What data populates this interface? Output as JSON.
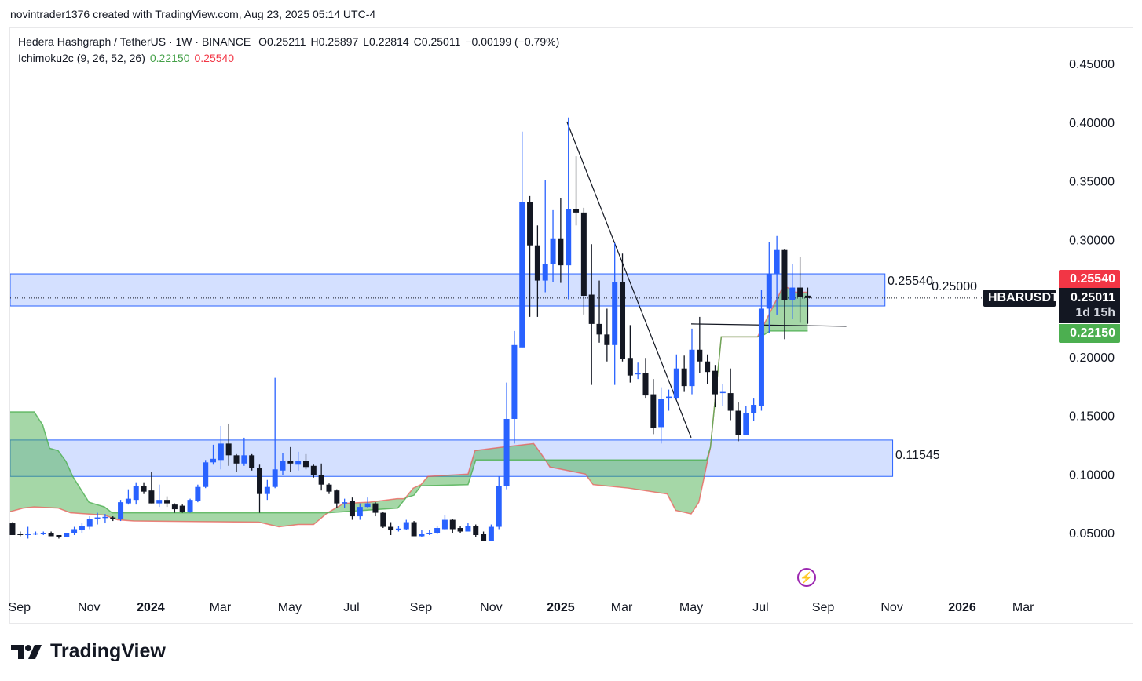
{
  "credit": "novintrader1376 created with TradingView.com, Aug 23, 2025 05:14 UTC-4",
  "legend": {
    "symbol": "Hedera Hashgraph / TetherUS · 1W · BINANCE",
    "open": "O0.25211",
    "high": "H0.25897",
    "low": "L0.22814",
    "close": "C0.25011",
    "change": "−0.00199 (−0.79%)",
    "indicator": "Ichimoku2c (9, 26, 52, 26)",
    "ind_val1": "0.22150",
    "ind_val2": "0.25540"
  },
  "price_tags": {
    "symbol": "HBARUSDT",
    "last": "0.25011",
    "countdown": "1d 15h",
    "span_b": "0.25540",
    "span_a": "0.22150"
  },
  "box_labels": {
    "upper": "0.25540",
    "lower": "0.11545"
  },
  "logo_text": "TradingView",
  "icons": {
    "event": "lightning-icon"
  },
  "colors": {
    "up": "#2962ff",
    "down": "#131722",
    "box": "#2962ff",
    "cloud": "#4caf50",
    "span_b": "#ef5350",
    "tag_red": "#f23645",
    "tag_green": "#4caf50"
  },
  "chart_data": {
    "type": "candlestick",
    "title": "Hedera Hashgraph / TetherUS · 1W · BINANCE",
    "xlabel": "",
    "ylabel": "",
    "interval": "1W",
    "ylim": [
      -0.024,
      0.481
    ],
    "xlim_weeks": [
      -0.3,
      145.3
    ],
    "y_ticks": [
      "0.45000",
      "0.40000",
      "0.35000",
      "0.30000",
      "0.25000",
      "0.20000",
      "0.15000",
      "0.10000",
      "0.05000"
    ],
    "x_ticks": [
      {
        "label": "Sep",
        "week": 0.9
      },
      {
        "label": "Nov",
        "week": 9.9
      },
      {
        "label": "2024",
        "week": 17.9,
        "bold": true
      },
      {
        "label": "Mar",
        "week": 26.9
      },
      {
        "label": "May",
        "week": 35.9
      },
      {
        "label": "Jul",
        "week": 43.9
      },
      {
        "label": "Sep",
        "week": 52.9
      },
      {
        "label": "Nov",
        "week": 62
      },
      {
        "label": "2025",
        "week": 71,
        "bold": true
      },
      {
        "label": "Mar",
        "week": 78.9
      },
      {
        "label": "May",
        "week": 87.9
      },
      {
        "label": "Jul",
        "week": 96.9
      },
      {
        "label": "Sep",
        "week": 105
      },
      {
        "label": "Nov",
        "week": 113.9
      },
      {
        "label": "2026",
        "week": 123,
        "bold": true
      },
      {
        "label": "Mar",
        "week": 130.9
      }
    ],
    "ohlc_fields": [
      "open",
      "high",
      "low",
      "close"
    ],
    "candles": [
      [
        0.058,
        0.059,
        0.048,
        0.048
      ],
      [
        0.049,
        0.051,
        0.047,
        0.048
      ],
      [
        0.048,
        0.055,
        0.045,
        0.049
      ],
      [
        0.049,
        0.051,
        0.048,
        0.0495
      ],
      [
        0.049,
        0.051,
        0.048,
        0.05
      ],
      [
        0.05,
        0.051,
        0.047,
        0.047
      ],
      [
        0.048,
        0.048,
        0.045,
        0.046
      ],
      [
        0.046,
        0.05,
        0.046,
        0.05
      ],
      [
        0.05,
        0.055,
        0.048,
        0.053
      ],
      [
        0.052,
        0.058,
        0.05,
        0.056
      ],
      [
        0.055,
        0.064,
        0.053,
        0.062
      ],
      [
        0.062,
        0.067,
        0.057,
        0.063
      ],
      [
        0.063,
        0.066,
        0.058,
        0.0635
      ],
      [
        0.063,
        0.064,
        0.06,
        0.062
      ],
      [
        0.062,
        0.078,
        0.06,
        0.076
      ],
      [
        0.075,
        0.087,
        0.074,
        0.079
      ],
      [
        0.078,
        0.093,
        0.074,
        0.09
      ],
      [
        0.09,
        0.093,
        0.083,
        0.085
      ],
      [
        0.086,
        0.102,
        0.075,
        0.075
      ],
      [
        0.075,
        0.091,
        0.072,
        0.078
      ],
      [
        0.078,
        0.081,
        0.072,
        0.075
      ],
      [
        0.074,
        0.075,
        0.067,
        0.07
      ],
      [
        0.073,
        0.074,
        0.067,
        0.068
      ],
      [
        0.068,
        0.079,
        0.067,
        0.078
      ],
      [
        0.077,
        0.091,
        0.076,
        0.089
      ],
      [
        0.089,
        0.112,
        0.088,
        0.11
      ],
      [
        0.11,
        0.125,
        0.108,
        0.113
      ],
      [
        0.112,
        0.141,
        0.104,
        0.126
      ],
      [
        0.126,
        0.143,
        0.107,
        0.116
      ],
      [
        0.116,
        0.117,
        0.102,
        0.109
      ],
      [
        0.109,
        0.131,
        0.107,
        0.116
      ],
      [
        0.116,
        0.117,
        0.103,
        0.105
      ],
      [
        0.105,
        0.108,
        0.067,
        0.083
      ],
      [
        0.083,
        0.095,
        0.078,
        0.089
      ],
      [
        0.089,
        0.182,
        0.088,
        0.104
      ],
      [
        0.103,
        0.118,
        0.099,
        0.111
      ],
      [
        0.111,
        0.123,
        0.102,
        0.109
      ],
      [
        0.108,
        0.119,
        0.103,
        0.111
      ],
      [
        0.111,
        0.117,
        0.104,
        0.106
      ],
      [
        0.107,
        0.108,
        0.097,
        0.099
      ],
      [
        0.099,
        0.109,
        0.086,
        0.091
      ],
      [
        0.091,
        0.092,
        0.083,
        0.085
      ],
      [
        0.086,
        0.087,
        0.071,
        0.075
      ],
      [
        0.075,
        0.079,
        0.071,
        0.076
      ],
      [
        0.077,
        0.08,
        0.061,
        0.064
      ],
      [
        0.064,
        0.075,
        0.061,
        0.072
      ],
      [
        0.072,
        0.08,
        0.071,
        0.075
      ],
      [
        0.075,
        0.076,
        0.064,
        0.067
      ],
      [
        0.067,
        0.068,
        0.054,
        0.055
      ],
      [
        0.055,
        0.059,
        0.048,
        0.052
      ],
      [
        0.053,
        0.056,
        0.051,
        0.0535
      ],
      [
        0.053,
        0.061,
        0.052,
        0.059
      ],
      [
        0.059,
        0.06,
        0.047,
        0.047
      ],
      [
        0.047,
        0.052,
        0.046,
        0.049
      ],
      [
        0.049,
        0.052,
        0.048,
        0.05
      ],
      [
        0.05,
        0.056,
        0.049,
        0.054
      ],
      [
        0.053,
        0.065,
        0.052,
        0.061
      ],
      [
        0.061,
        0.062,
        0.05,
        0.053
      ],
      [
        0.054,
        0.056,
        0.05,
        0.051
      ],
      [
        0.051,
        0.058,
        0.051,
        0.056
      ],
      [
        0.056,
        0.057,
        0.046,
        0.048
      ],
      [
        0.049,
        0.051,
        0.043,
        0.043
      ],
      [
        0.043,
        0.057,
        0.043,
        0.055
      ],
      [
        0.055,
        0.098,
        0.053,
        0.09
      ],
      [
        0.09,
        0.178,
        0.087,
        0.147
      ],
      [
        0.147,
        0.222,
        0.126,
        0.21
      ],
      [
        0.208,
        0.392,
        0.208,
        0.332
      ],
      [
        0.332,
        0.337,
        0.234,
        0.295
      ],
      [
        0.295,
        0.312,
        0.234,
        0.265
      ],
      [
        0.265,
        0.351,
        0.255,
        0.279
      ],
      [
        0.279,
        0.325,
        0.264,
        0.301
      ],
      [
        0.301,
        0.335,
        0.263,
        0.278
      ],
      [
        0.278,
        0.404,
        0.249,
        0.326
      ],
      [
        0.326,
        0.371,
        0.312,
        0.323
      ],
      [
        0.323,
        0.327,
        0.236,
        0.252
      ],
      [
        0.253,
        0.296,
        0.176,
        0.228
      ],
      [
        0.228,
        0.265,
        0.212,
        0.219
      ],
      [
        0.219,
        0.241,
        0.196,
        0.21
      ],
      [
        0.21,
        0.297,
        0.176,
        0.264
      ],
      [
        0.264,
        0.288,
        0.196,
        0.198
      ],
      [
        0.199,
        0.227,
        0.178,
        0.184
      ],
      [
        0.185,
        0.195,
        0.181,
        0.186
      ],
      [
        0.186,
        0.199,
        0.165,
        0.167
      ],
      [
        0.168,
        0.181,
        0.134,
        0.139
      ],
      [
        0.14,
        0.174,
        0.126,
        0.164
      ],
      [
        0.165,
        0.172,
        0.154,
        0.166
      ],
      [
        0.165,
        0.202,
        0.164,
        0.19
      ],
      [
        0.19,
        0.201,
        0.17,
        0.175
      ],
      [
        0.175,
        0.224,
        0.168,
        0.206
      ],
      [
        0.206,
        0.234,
        0.186,
        0.196
      ],
      [
        0.196,
        0.202,
        0.177,
        0.187
      ],
      [
        0.188,
        0.193,
        0.157,
        0.168
      ],
      [
        0.169,
        0.177,
        0.158,
        0.17
      ],
      [
        0.169,
        0.19,
        0.146,
        0.154
      ],
      [
        0.154,
        0.161,
        0.128,
        0.133
      ],
      [
        0.133,
        0.158,
        0.133,
        0.152
      ],
      [
        0.152,
        0.165,
        0.145,
        0.159
      ],
      [
        0.158,
        0.257,
        0.154,
        0.241
      ],
      [
        0.241,
        0.298,
        0.22,
        0.271
      ],
      [
        0.271,
        0.303,
        0.236,
        0.291
      ],
      [
        0.291,
        0.292,
        0.215,
        0.248
      ],
      [
        0.248,
        0.279,
        0.232,
        0.259
      ],
      [
        0.259,
        0.285,
        0.229,
        0.251
      ],
      [
        0.25211,
        0.25897,
        0.22814,
        0.25011
      ]
    ],
    "ichimoku": {
      "name": "Ichimoku2c (9, 26, 52, 26)",
      "line_green": [
        [
          -0.3,
          0.153
        ],
        [
          2.8,
          0.153
        ],
        [
          3.9,
          0.142
        ],
        [
          4.8,
          0.122
        ],
        [
          5.9,
          0.12
        ],
        [
          6.9,
          0.111
        ],
        [
          7.8,
          0.098
        ],
        [
          9.9,
          0.076
        ],
        [
          11.9,
          0.072
        ],
        [
          12.9,
          0.067
        ],
        [
          40.8,
          0.067
        ],
        [
          49.9,
          0.071
        ],
        [
          51,
          0.08
        ],
        [
          52,
          0.082
        ],
        [
          52.9,
          0.09
        ],
        [
          59,
          0.091
        ],
        [
          60,
          0.112
        ],
        [
          89.9,
          0.112
        ],
        [
          90.4,
          0.123
        ],
        [
          91.8,
          0.217
        ],
        [
          96.5,
          0.217
        ],
        [
          97.4,
          0.219
        ],
        [
          98.1,
          0.222
        ],
        [
          103,
          0.222
        ]
      ],
      "line_red": [
        [
          -0.3,
          0.068
        ],
        [
          1.4,
          0.071
        ],
        [
          2.8,
          0.072
        ],
        [
          5.9,
          0.071
        ],
        [
          7.5,
          0.067
        ],
        [
          11.9,
          0.065
        ],
        [
          13.6,
          0.061
        ],
        [
          15.7,
          0.06
        ],
        [
          31.9,
          0.059
        ],
        [
          34.5,
          0.055
        ],
        [
          37,
          0.057
        ],
        [
          39,
          0.057
        ],
        [
          40.8,
          0.067
        ],
        [
          42.9,
          0.075
        ],
        [
          46.2,
          0.076
        ],
        [
          49.8,
          0.079
        ],
        [
          50.8,
          0.079
        ],
        [
          51.9,
          0.088
        ],
        [
          52.9,
          0.091
        ],
        [
          53.8,
          0.098
        ],
        [
          59,
          0.1
        ],
        [
          59.9,
          0.12
        ],
        [
          63.5,
          0.123
        ],
        [
          67.5,
          0.126
        ],
        [
          68.6,
          0.116
        ],
        [
          69.6,
          0.106
        ],
        [
          74.2,
          0.1
        ],
        [
          75.2,
          0.091
        ],
        [
          79.8,
          0.088
        ],
        [
          84.8,
          0.083
        ],
        [
          85.9,
          0.069
        ],
        [
          87.9,
          0.066
        ],
        [
          88.9,
          0.076
        ],
        [
          90.4,
          0.123
        ],
        [
          91.8,
          0.217
        ],
        [
          96.5,
          0.217
        ],
        [
          99.6,
          0.257
        ],
        [
          100.4,
          0.259
        ],
        [
          101.4,
          0.255
        ],
        [
          103,
          0.255
        ]
      ]
    },
    "drawings": {
      "boxes": [
        {
          "name": "upper-zone",
          "from_week": -0.3,
          "to_week": 113,
          "price_top": 0.2707,
          "price_bottom": 0.2433
        },
        {
          "name": "lower-zone",
          "from_week": -0.3,
          "to_week": 114,
          "price_top": 0.129,
          "price_bottom": 0.098
        }
      ],
      "trendline": [
        [
          71.8,
          0.4005
        ],
        [
          87.9,
          0.131
        ]
      ],
      "hline": [
        [
          87.9,
          0.228
        ],
        [
          108,
          0.226
        ]
      ],
      "last_price": 0.25011
    }
  }
}
